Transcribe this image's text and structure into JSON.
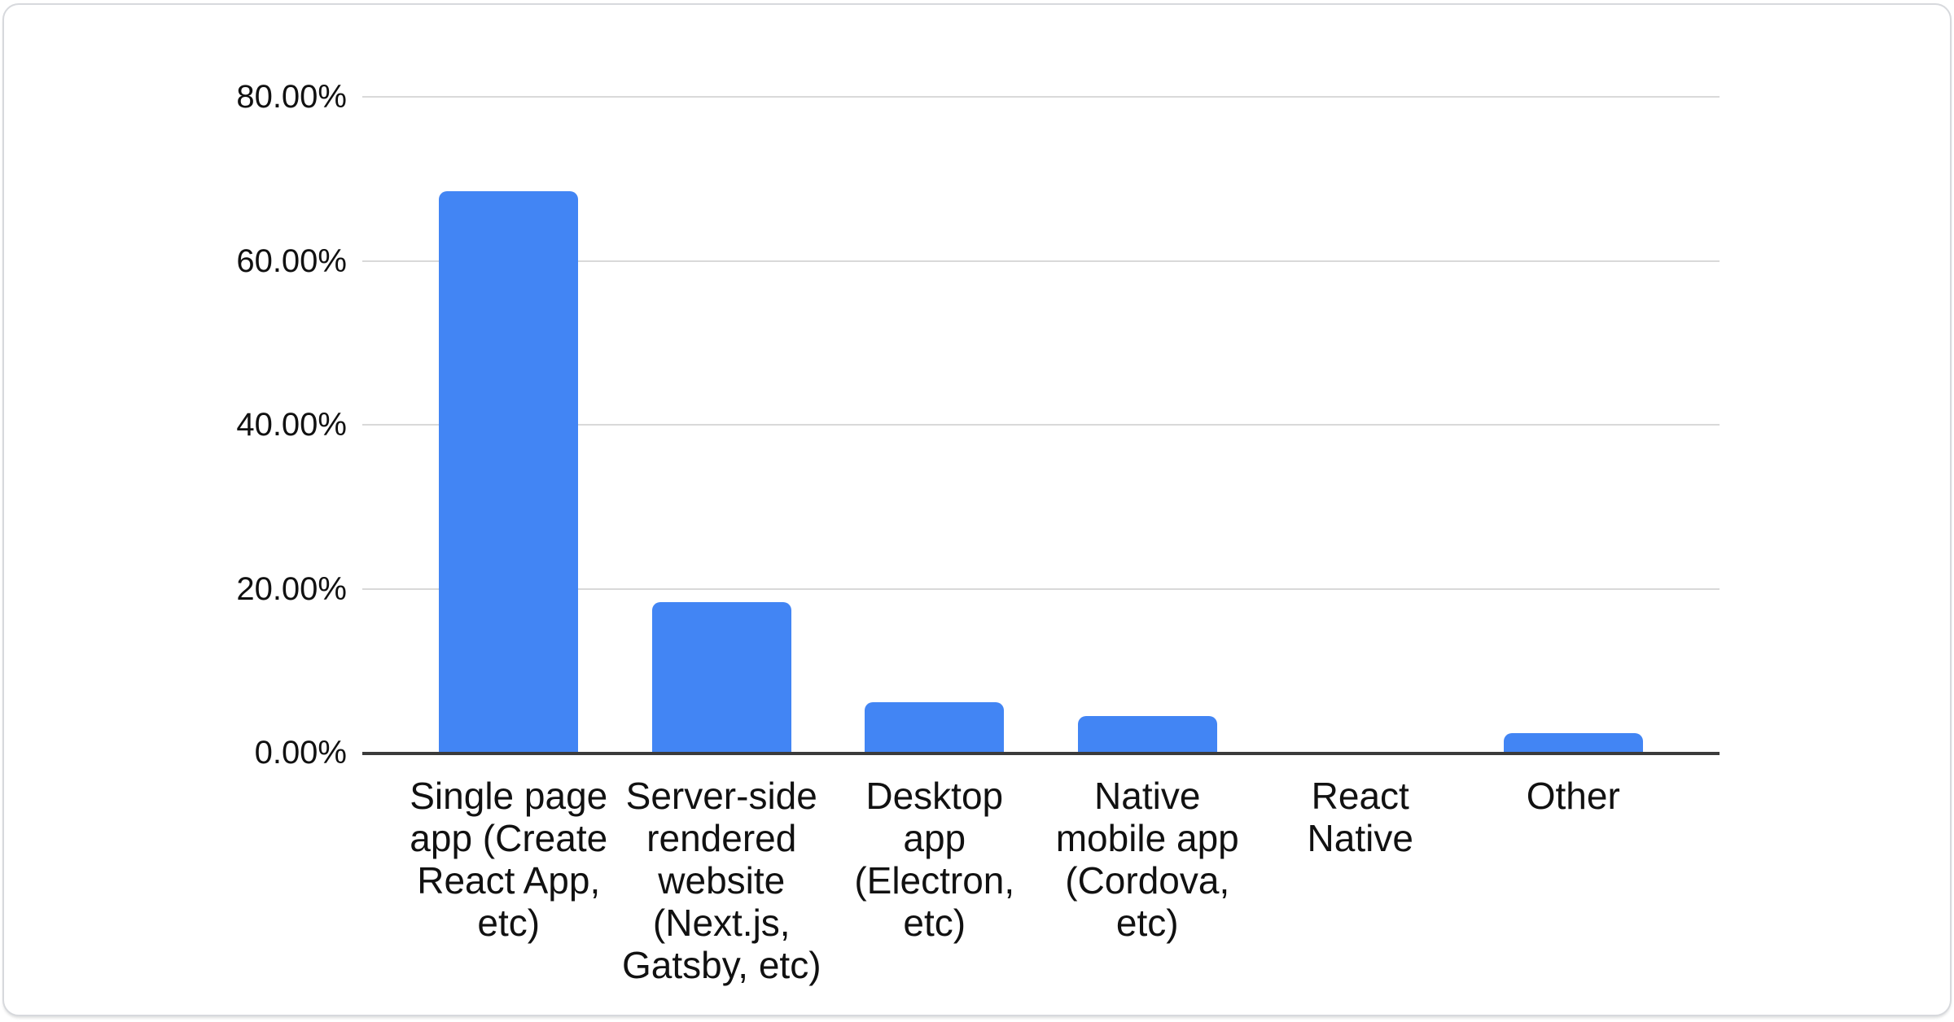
{
  "chart_data": {
    "type": "bar",
    "categories": [
      "Single page app (Create React App, etc)",
      "Server-side rendered website (Next.js, Gatsby, etc)",
      "Desktop app (Electron, etc)",
      "Native mobile app (Cordova, etc)",
      "React Native",
      "Other"
    ],
    "values": [
      68.5,
      18.4,
      6.2,
      4.5,
      0,
      2.4
    ],
    "title": "",
    "xlabel": "",
    "ylabel": "",
    "ylim": [
      0,
      80
    ],
    "y_ticks": [
      {
        "label": "80.00%",
        "value": 80
      },
      {
        "label": "60.00%",
        "value": 60
      },
      {
        "label": "40.00%",
        "value": 40
      },
      {
        "label": "20.00%",
        "value": 20
      },
      {
        "label": "0.00%",
        "value": 0
      }
    ],
    "grid": true,
    "legend_position": "none"
  },
  "colors": {
    "bar": "#4285f4",
    "gridline": "#d9d9d9",
    "axis_line": "#3b3b3b",
    "text": "#111111",
    "card_border": "#d7d9dd",
    "card_bg": "#ffffff"
  }
}
